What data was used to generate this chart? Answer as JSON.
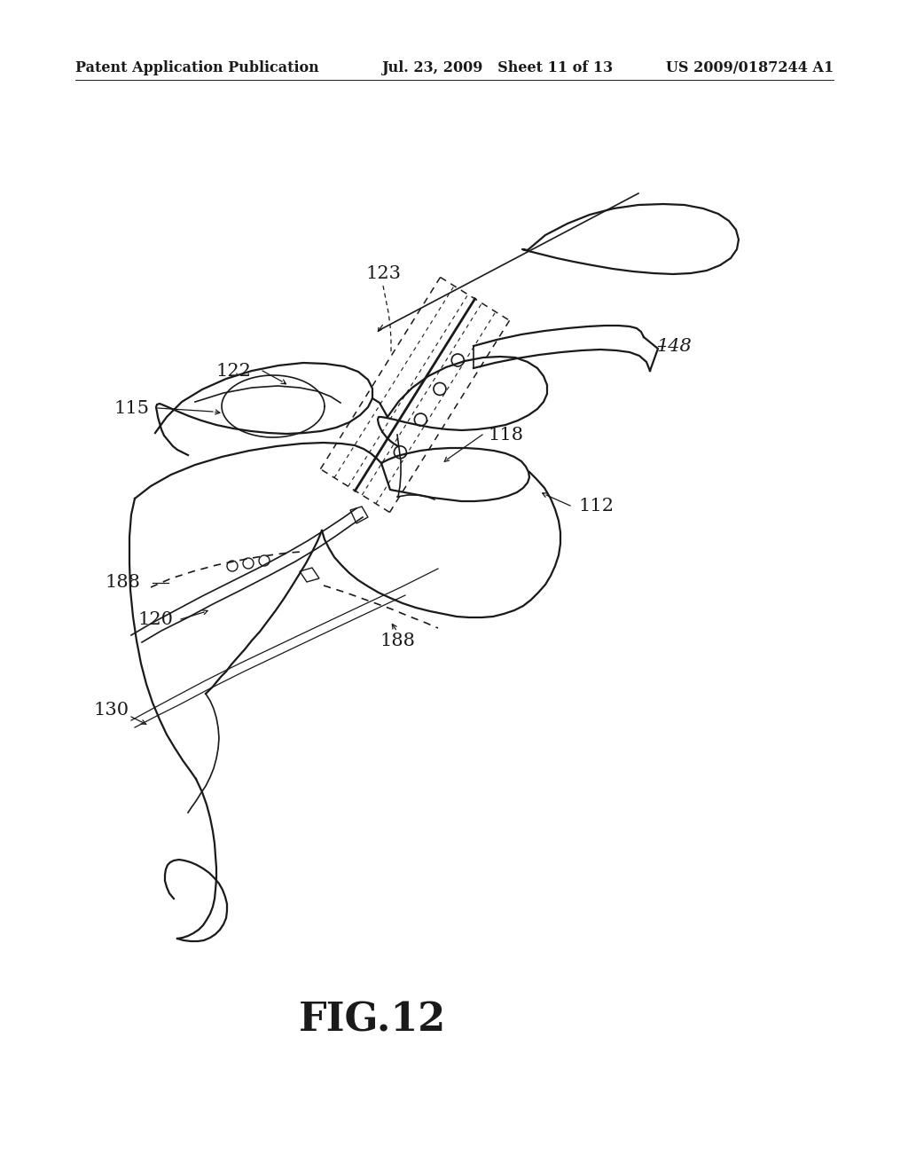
{
  "title": "FIG.12",
  "header_left": "Patent Application Publication",
  "header_mid": "Jul. 23, 2009   Sheet 11 of 13",
  "header_right": "US 2009/0187244 A1",
  "bg_color": "#ffffff",
  "line_color": "#1a1a1a",
  "fig_label_size": 32,
  "header_fontsize": 11.5,
  "label_fontsize": 15
}
